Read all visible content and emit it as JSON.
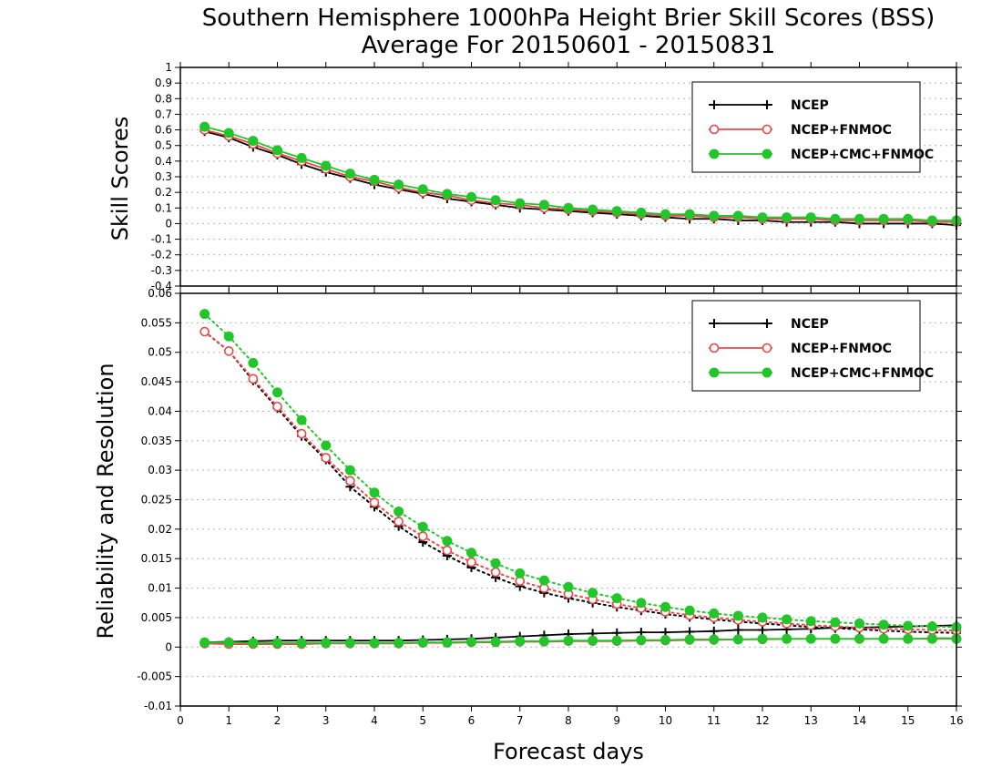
{
  "figure": {
    "title_line1": "Southern Hemisphere 1000hPa Height Brier Skill Scores (BSS)",
    "title_line2": "Average For 20150601 - 20150831",
    "xlabel": "Forecast days"
  },
  "colors": {
    "NCEP": "#000000",
    "NCEP+FNMOC": "#e84a4a",
    "NCEP+CMC+FNMOC": "#22c52a",
    "grid": "#b4b4b4"
  },
  "chart_data": [
    {
      "type": "line",
      "ylabel": "Skill Scores",
      "xlim": [
        0,
        16
      ],
      "ylim": [
        -0.4,
        1
      ],
      "grid": true,
      "legend_position": "top-right",
      "x_ticks": [
        "0",
        "1",
        "2",
        "3",
        "4",
        "5",
        "6",
        "7",
        "8",
        "9",
        "10",
        "11",
        "12",
        "13",
        "14",
        "15",
        "16"
      ],
      "y_ticks": [
        "1",
        "0.9",
        "0.8",
        "0.7",
        "0.6",
        "0.5",
        "0.4",
        "0.3",
        "0.2",
        "0.1",
        "0",
        "-0.1",
        "-0.2",
        "-0.3",
        "-0.4"
      ],
      "x": [
        0.5,
        1,
        1.5,
        2,
        2.5,
        3,
        3.5,
        4,
        4.5,
        5,
        5.5,
        6,
        6.5,
        7,
        7.5,
        8,
        8.5,
        9,
        9.5,
        10,
        10.5,
        11,
        11.5,
        12,
        12.5,
        13,
        13.5,
        14,
        14.5,
        15,
        15.5,
        16
      ],
      "series": [
        {
          "name": "NCEP",
          "marker": "plus",
          "line": "solid",
          "values": [
            0.59,
            0.55,
            0.49,
            0.44,
            0.38,
            0.33,
            0.29,
            0.25,
            0.22,
            0.19,
            0.16,
            0.14,
            0.12,
            0.1,
            0.09,
            0.08,
            0.07,
            0.06,
            0.05,
            0.04,
            0.03,
            0.03,
            0.02,
            0.02,
            0.01,
            0.01,
            0.01,
            0.0,
            0.0,
            0.0,
            0.0,
            -0.01
          ]
        },
        {
          "name": "NCEP+FNMOC",
          "marker": "open-circle",
          "line": "solid",
          "values": [
            0.6,
            0.56,
            0.51,
            0.45,
            0.4,
            0.35,
            0.3,
            0.27,
            0.23,
            0.2,
            0.18,
            0.15,
            0.13,
            0.12,
            0.1,
            0.09,
            0.08,
            0.07,
            0.06,
            0.05,
            0.05,
            0.04,
            0.04,
            0.03,
            0.03,
            0.03,
            0.02,
            0.02,
            0.02,
            0.02,
            0.01,
            0.01
          ]
        },
        {
          "name": "NCEP+CMC+FNMOC",
          "marker": "filled-circle",
          "line": "solid",
          "values": [
            0.62,
            0.58,
            0.53,
            0.47,
            0.42,
            0.37,
            0.32,
            0.28,
            0.25,
            0.22,
            0.19,
            0.17,
            0.15,
            0.13,
            0.12,
            0.1,
            0.09,
            0.08,
            0.07,
            0.06,
            0.06,
            0.05,
            0.05,
            0.04,
            0.04,
            0.04,
            0.03,
            0.03,
            0.03,
            0.03,
            0.02,
            0.02
          ]
        }
      ]
    },
    {
      "type": "line",
      "ylabel": "Reliability and Resolution",
      "xlim": [
        0,
        16
      ],
      "ylim": [
        -0.01,
        0.06
      ],
      "grid": true,
      "legend_position": "top-right",
      "x_ticks": [
        "0",
        "1",
        "2",
        "3",
        "4",
        "5",
        "6",
        "7",
        "8",
        "9",
        "10",
        "11",
        "12",
        "13",
        "14",
        "15",
        "16"
      ],
      "y_ticks": [
        "0.06",
        "0.055",
        "0.05",
        "0.045",
        "0.04",
        "0.035",
        "0.03",
        "0.025",
        "0.02",
        "0.015",
        "0.01",
        "0.005",
        "0",
        "-0.005",
        "-0.01"
      ],
      "x": [
        0.5,
        1,
        1.5,
        2,
        2.5,
        3,
        3.5,
        4,
        4.5,
        5,
        5.5,
        6,
        6.5,
        7,
        7.5,
        8,
        8.5,
        9,
        9.5,
        10,
        10.5,
        11,
        11.5,
        12,
        12.5,
        13,
        13.5,
        14,
        14.5,
        15,
        15.5,
        16
      ],
      "series": [
        {
          "name": "NCEP",
          "component": "resolution",
          "marker": "plus",
          "line": "dotted",
          "values": [
            0.0535,
            0.0502,
            0.0452,
            0.0405,
            0.0358,
            0.0318,
            0.0272,
            0.0238,
            0.0205,
            0.0178,
            0.0155,
            0.0135,
            0.0118,
            0.0103,
            0.0092,
            0.0083,
            0.0075,
            0.0068,
            0.0062,
            0.0056,
            0.0051,
            0.0047,
            0.0043,
            0.004,
            0.0037,
            0.0034,
            0.0032,
            0.003,
            0.0028,
            0.0026,
            0.0025,
            0.0024
          ]
        },
        {
          "name": "NCEP",
          "component": "reliability",
          "marker": "plus",
          "line": "solid",
          "values": [
            0.0008,
            0.0009,
            0.001,
            0.0011,
            0.0011,
            0.0011,
            0.0011,
            0.0011,
            0.0011,
            0.0012,
            0.0013,
            0.0014,
            0.0016,
            0.0018,
            0.002,
            0.0022,
            0.0023,
            0.0024,
            0.0025,
            0.0025,
            0.0026,
            0.0027,
            0.0029,
            0.0029,
            0.003,
            0.0031,
            0.0033,
            0.0033,
            0.0034,
            0.0035,
            0.0036,
            0.0037
          ]
        },
        {
          "name": "NCEP+FNMOC",
          "component": "resolution",
          "marker": "open-circle",
          "line": "dotted",
          "values": [
            0.0535,
            0.0502,
            0.0455,
            0.0408,
            0.0362,
            0.0321,
            0.0282,
            0.0245,
            0.0213,
            0.0188,
            0.0164,
            0.0144,
            0.0127,
            0.0112,
            0.01,
            0.009,
            0.0081,
            0.0073,
            0.0066,
            0.006,
            0.0054,
            0.005,
            0.0046,
            0.0043,
            0.004,
            0.0037,
            0.0035,
            0.0033,
            0.0031,
            0.003,
            0.0029,
            0.0028
          ]
        },
        {
          "name": "NCEP+FNMOC",
          "component": "reliability",
          "marker": "open-circle",
          "line": "solid",
          "values": [
            0.0006,
            0.0005,
            0.0005,
            0.0005,
            0.0005,
            0.0006,
            0.0006,
            0.0006,
            0.0006,
            0.0007,
            0.0007,
            0.0008,
            0.0008,
            0.0009,
            0.0009,
            0.001,
            0.001,
            0.001,
            0.0011,
            0.0011,
            0.0012,
            0.0012,
            0.0013,
            0.0013,
            0.0014,
            0.0014,
            0.0014,
            0.0014,
            0.0014,
            0.0014,
            0.0015,
            0.0015
          ]
        },
        {
          "name": "NCEP+CMC+FNMOC",
          "component": "resolution",
          "marker": "filled-circle",
          "line": "dotted",
          "values": [
            0.0565,
            0.0527,
            0.0482,
            0.0432,
            0.0385,
            0.0342,
            0.03,
            0.0262,
            0.023,
            0.0204,
            0.018,
            0.016,
            0.0142,
            0.0125,
            0.0113,
            0.0102,
            0.0092,
            0.0083,
            0.0075,
            0.0068,
            0.0062,
            0.0057,
            0.0053,
            0.005,
            0.0047,
            0.0044,
            0.0042,
            0.004,
            0.0038,
            0.0036,
            0.0035,
            0.0034
          ]
        },
        {
          "name": "NCEP+CMC+FNMOC",
          "component": "reliability",
          "marker": "filled-circle",
          "line": "solid",
          "values": [
            0.0008,
            0.0008,
            0.0007,
            0.0007,
            0.0007,
            0.0007,
            0.0007,
            0.0007,
            0.0007,
            0.0008,
            0.0008,
            0.0009,
            0.0009,
            0.001,
            0.001,
            0.0011,
            0.0011,
            0.0011,
            0.0012,
            0.0012,
            0.0013,
            0.0013,
            0.0013,
            0.0014,
            0.0014,
            0.0014,
            0.0014,
            0.0014,
            0.0014,
            0.0014,
            0.0014,
            0.0014
          ]
        }
      ]
    }
  ]
}
